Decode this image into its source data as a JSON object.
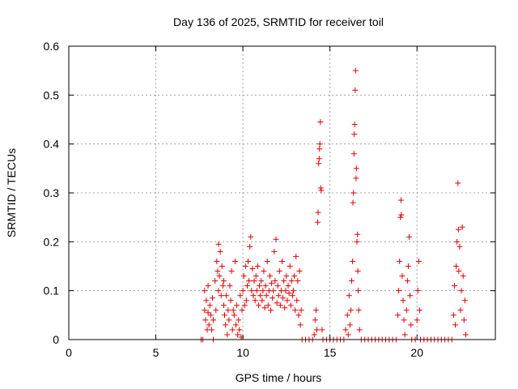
{
  "chart_data": {
    "type": "scatter",
    "title": "Day 136 of 2025, SRMTID for receiver toil",
    "xlabel": "GPS time / hours",
    "ylabel": "SRMTID / TECUs",
    "xlim": [
      0,
      24.5
    ],
    "ylim": [
      0,
      0.6
    ],
    "xticks": [
      0,
      5,
      10,
      15,
      20
    ],
    "yticks": [
      0,
      0.1,
      0.2,
      0.3,
      0.4,
      0.5,
      0.6
    ],
    "grid": true,
    "marker": "+",
    "marker_color": "#e00000",
    "series": [
      {
        "name": "SRMTID",
        "points": [
          [
            7.6,
            0
          ],
          [
            7.7,
            0
          ],
          [
            7.8,
            0.06
          ],
          [
            7.8,
            0.1
          ],
          [
            7.85,
            0.04
          ],
          [
            7.9,
            0.08
          ],
          [
            7.95,
            0.02
          ],
          [
            8.0,
            0.055
          ],
          [
            8.0,
            0.11
          ],
          [
            8.05,
            0.03
          ],
          [
            8.1,
            0.07
          ],
          [
            8.15,
            0.05
          ],
          [
            8.2,
            0.02
          ],
          [
            8.25,
            0.085
          ],
          [
            8.3,
            0.04
          ],
          [
            8.3,
            0
          ],
          [
            8.4,
            0.12
          ],
          [
            8.45,
            0.06
          ],
          [
            8.5,
            0.16
          ],
          [
            8.55,
            0.14
          ],
          [
            8.6,
            0.1
          ],
          [
            8.6,
            0.195
          ],
          [
            8.65,
            0.13
          ],
          [
            8.7,
            0.18
          ],
          [
            8.75,
            0.09
          ],
          [
            8.8,
            0.15
          ],
          [
            8.85,
            0.11
          ],
          [
            8.9,
            0.07
          ],
          [
            8.9,
            0.12
          ],
          [
            8.95,
            0.05
          ],
          [
            9.0,
            0.03
          ],
          [
            9.05,
            0.09
          ],
          [
            9.1,
            0.01
          ],
          [
            9.15,
            0.06
          ],
          [
            9.2,
            0.04
          ],
          [
            9.25,
            0.11
          ],
          [
            9.3,
            0.08
          ],
          [
            9.35,
            0.14
          ],
          [
            9.4,
            0.02
          ],
          [
            9.45,
            0.06
          ],
          [
            9.5,
            0.05
          ],
          [
            9.55,
            0.16
          ],
          [
            9.6,
            0.03
          ],
          [
            9.65,
            0.07
          ],
          [
            9.7,
            0.01
          ],
          [
            9.75,
            0.04
          ],
          [
            9.8,
            0.02
          ],
          [
            9.85,
            0.09
          ],
          [
            9.9,
            0.005
          ],
          [
            9.95,
            0.06
          ],
          [
            10.0,
            0.1
          ],
          [
            10.05,
            0.13
          ],
          [
            10.1,
            0.07
          ],
          [
            10.15,
            0.15
          ],
          [
            10.2,
            0.08
          ],
          [
            10.25,
            0.11
          ],
          [
            10.3,
            0.16
          ],
          [
            10.35,
            0.12
          ],
          [
            10.4,
            0.19
          ],
          [
            10.45,
            0.21
          ],
          [
            10.5,
            0.1
          ],
          [
            10.55,
            0.145
          ],
          [
            10.6,
            0.09
          ],
          [
            10.65,
            0.12
          ],
          [
            10.7,
            0.08
          ],
          [
            10.75,
            0.13
          ],
          [
            10.8,
            0.1
          ],
          [
            10.85,
            0.15
          ],
          [
            10.9,
            0.07
          ],
          [
            10.95,
            0.11
          ],
          [
            11.0,
            0.09
          ],
          [
            11.05,
            0.12
          ],
          [
            11.1,
            0.08
          ],
          [
            11.15,
            0.1
          ],
          [
            11.2,
            0.14
          ],
          [
            11.25,
            0.065
          ],
          [
            11.3,
            0.11
          ],
          [
            11.35,
            0.09
          ],
          [
            11.4,
            0.16
          ],
          [
            11.45,
            0.07
          ],
          [
            11.5,
            0.1
          ],
          [
            11.55,
            0.13
          ],
          [
            11.6,
            0.06
          ],
          [
            11.65,
            0.115
          ],
          [
            11.7,
            0.085
          ],
          [
            11.75,
            0.1
          ],
          [
            11.8,
            0.18
          ],
          [
            11.85,
            0.12
          ],
          [
            11.9,
            0.205
          ],
          [
            11.95,
            0.075
          ],
          [
            12.0,
            0.11
          ],
          [
            12.05,
            0.09
          ],
          [
            12.1,
            0.14
          ],
          [
            12.15,
            0.07
          ],
          [
            12.2,
            0.1
          ],
          [
            12.25,
            0.16
          ],
          [
            12.3,
            0.085
          ],
          [
            12.35,
            0.12
          ],
          [
            12.4,
            0.065
          ],
          [
            12.45,
            0.1
          ],
          [
            12.5,
            0.13
          ],
          [
            12.55,
            0.08
          ],
          [
            12.6,
            0.11
          ],
          [
            12.65,
            0.095
          ],
          [
            12.7,
            0.15
          ],
          [
            12.75,
            0.07
          ],
          [
            12.8,
            0.12
          ],
          [
            12.85,
            0.09
          ],
          [
            12.9,
            0.1
          ],
          [
            12.95,
            0.13
          ],
          [
            13.0,
            0.06
          ],
          [
            13.05,
            0.17
          ],
          [
            13.1,
            0.08
          ],
          [
            13.15,
            0.12
          ],
          [
            13.2,
            0.05
          ],
          [
            13.25,
            0.14
          ],
          [
            13.3,
            0.03
          ],
          [
            13.35,
            0.06
          ],
          [
            13.4,
            0
          ],
          [
            13.6,
            0
          ],
          [
            13.8,
            0
          ],
          [
            14.0,
            0
          ],
          [
            14.1,
            0.01
          ],
          [
            14.15,
            0.04
          ],
          [
            14.2,
            0.06
          ],
          [
            14.25,
            0.02
          ],
          [
            14.3,
            0.24
          ],
          [
            14.32,
            0.26
          ],
          [
            14.35,
            0.36
          ],
          [
            14.38,
            0.37
          ],
          [
            14.4,
            0.39
          ],
          [
            14.42,
            0.4
          ],
          [
            14.45,
            0.445
          ],
          [
            14.47,
            0.31
          ],
          [
            14.5,
            0.305
          ],
          [
            14.55,
            0.02
          ],
          [
            14.6,
            0
          ],
          [
            14.8,
            0
          ],
          [
            15.0,
            0
          ],
          [
            15.2,
            0
          ],
          [
            15.4,
            0
          ],
          [
            15.6,
            0
          ],
          [
            15.8,
            0
          ],
          [
            15.9,
            0.02
          ],
          [
            16.0,
            0.05
          ],
          [
            16.05,
            0.01
          ],
          [
            16.1,
            0.09
          ],
          [
            16.15,
            0.03
          ],
          [
            16.2,
            0.06
          ],
          [
            16.25,
            0.12
          ],
          [
            16.3,
            0.16
          ],
          [
            16.32,
            0.28
          ],
          [
            16.35,
            0.3
          ],
          [
            16.38,
            0.38
          ],
          [
            16.4,
            0.42
          ],
          [
            16.42,
            0.44
          ],
          [
            16.45,
            0.51
          ],
          [
            16.47,
            0.55
          ],
          [
            16.5,
            0.33
          ],
          [
            16.52,
            0.35
          ],
          [
            16.55,
            0.2
          ],
          [
            16.58,
            0.215
          ],
          [
            16.6,
            0.14
          ],
          [
            16.62,
            0.1
          ],
          [
            16.65,
            0.06
          ],
          [
            16.7,
            0.02
          ],
          [
            16.8,
            0
          ],
          [
            17.0,
            0
          ],
          [
            17.2,
            0
          ],
          [
            17.4,
            0
          ],
          [
            17.6,
            0
          ],
          [
            17.8,
            0
          ],
          [
            18.0,
            0
          ],
          [
            18.2,
            0
          ],
          [
            18.4,
            0
          ],
          [
            18.6,
            0
          ],
          [
            18.8,
            0
          ],
          [
            18.9,
            0.05
          ],
          [
            18.95,
            0.1
          ],
          [
            19.0,
            0.16
          ],
          [
            19.05,
            0.25
          ],
          [
            19.08,
            0.285
          ],
          [
            19.1,
            0.255
          ],
          [
            19.15,
            0.13
          ],
          [
            19.2,
            0.08
          ],
          [
            19.25,
            0.04
          ],
          [
            19.3,
            0.01
          ],
          [
            19.4,
            0.06
          ],
          [
            19.45,
            0.12
          ],
          [
            19.5,
            0.15
          ],
          [
            19.55,
            0.21
          ],
          [
            19.6,
            0.09
          ],
          [
            19.65,
            0.03
          ],
          [
            19.7,
            0
          ],
          [
            19.9,
            0
          ],
          [
            20.0,
            0.04
          ],
          [
            20.05,
            0.1
          ],
          [
            20.1,
            0.16
          ],
          [
            20.15,
            0.06
          ],
          [
            20.2,
            0
          ],
          [
            20.4,
            0
          ],
          [
            20.6,
            0
          ],
          [
            20.8,
            0
          ],
          [
            21.0,
            0
          ],
          [
            21.2,
            0
          ],
          [
            21.4,
            0
          ],
          [
            21.6,
            0
          ],
          [
            21.8,
            0
          ],
          [
            22.0,
            0
          ],
          [
            22.1,
            0.05
          ],
          [
            22.15,
            0.11
          ],
          [
            22.2,
            0.03
          ],
          [
            22.25,
            0.15
          ],
          [
            22.3,
            0.2
          ],
          [
            22.35,
            0.32
          ],
          [
            22.38,
            0.225
          ],
          [
            22.4,
            0.14
          ],
          [
            22.45,
            0.19
          ],
          [
            22.5,
            0.06
          ],
          [
            22.55,
            0.1
          ],
          [
            22.6,
            0.23
          ],
          [
            22.65,
            0.13
          ],
          [
            22.7,
            0.04
          ],
          [
            22.75,
            0.08
          ],
          [
            22.8,
            0.01
          ]
        ]
      }
    ]
  }
}
